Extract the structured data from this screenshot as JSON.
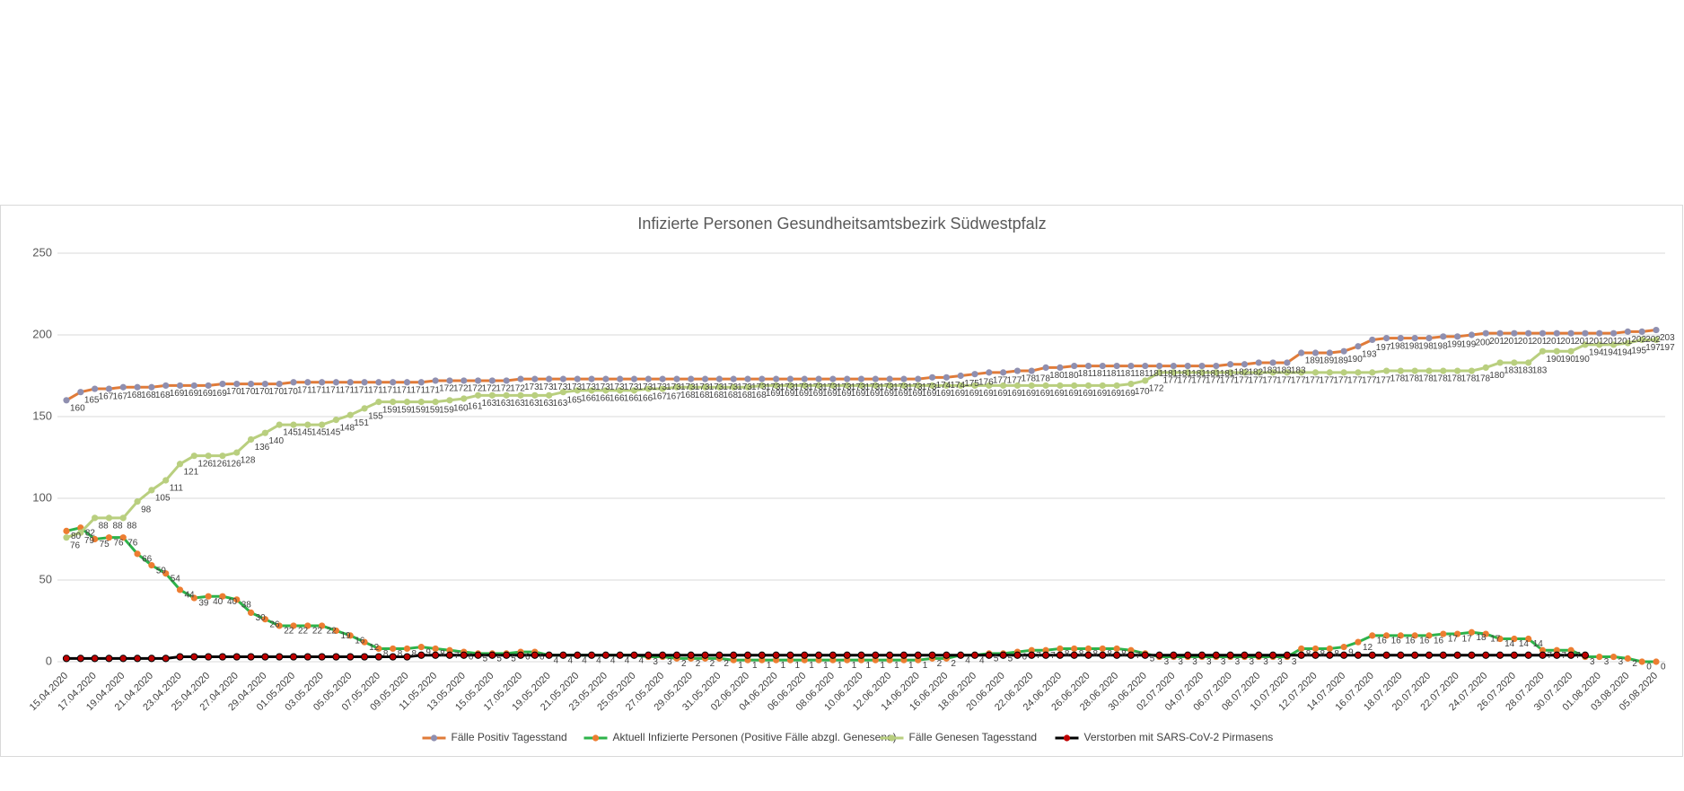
{
  "chart_data": {
    "type": "line",
    "title": "Infizierte Personen Gesundheitsamtsbezirk Südwestpfalz",
    "categories": [
      "15.04.2020",
      null,
      "17.04.2020",
      null,
      "19.04.2020",
      null,
      "21.04.2020",
      null,
      "23.04.2020",
      null,
      "25.04.2020",
      null,
      "27.04.2020",
      null,
      "29.04.2020",
      null,
      "01.05.2020",
      null,
      "03.05.2020",
      null,
      "05.05.2020",
      null,
      "07.05.2020",
      null,
      "09.05.2020",
      null,
      "11.05.2020",
      null,
      "13.05.2020",
      null,
      "15.05.2020",
      null,
      "17.05.2020",
      null,
      "19.05.2020",
      null,
      "21.05.2020",
      null,
      "23.05.2020",
      null,
      "25.05.2020",
      null,
      "27.05.2020",
      null,
      "29.05.2020",
      null,
      "31.05.2020",
      null,
      "02.06.2020",
      null,
      "04.06.2020",
      null,
      "06.06.2020",
      null,
      "08.06.2020",
      null,
      "10.06.2020",
      null,
      "12.06.2020",
      null,
      "14.06.2020",
      null,
      "16.06.2020",
      null,
      "18.06.2020",
      null,
      "20.06.2020",
      null,
      "22.06.2020",
      null,
      "24.06.2020",
      null,
      "26.06.2020",
      null,
      "28.06.2020",
      null,
      "30.06.2020",
      null,
      "02.07.2020",
      null,
      "04.07.2020",
      null,
      "06.07.2020",
      null,
      "08.07.2020",
      null,
      "10.07.2020",
      null,
      "12.07.2020",
      null,
      "14.07.2020",
      null,
      "16.07.2020",
      null,
      "18.07.2020",
      null,
      "20.07.2020",
      null,
      "22.07.2020",
      null,
      "24.07.2020",
      null,
      "26.07.2020",
      null,
      "28.07.2020",
      null,
      "30.07.2020",
      null,
      "01.08.2020",
      null,
      "03.08.2020",
      null,
      "05.08.2020"
    ],
    "series": [
      {
        "name": "Fälle Positiv Tagesstand",
        "color": "#e07b39",
        "marker": "#8f8fb0",
        "values": [
          160,
          165,
          167,
          167,
          168,
          168,
          168,
          169,
          169,
          169,
          169,
          170,
          170,
          170,
          170,
          170,
          171,
          171,
          171,
          171,
          171,
          171,
          171,
          171,
          171,
          171,
          172,
          172,
          172,
          172,
          172,
          172,
          173,
          173,
          173,
          173,
          173,
          173,
          173,
          173,
          173,
          173,
          173,
          173,
          173,
          173,
          173,
          173,
          173,
          173,
          173,
          173,
          173,
          173,
          173,
          173,
          173,
          173,
          173,
          173,
          173,
          174,
          174,
          175,
          176,
          177,
          177,
          178,
          178,
          180,
          180,
          181,
          181,
          181,
          181,
          181,
          181,
          181,
          181,
          181,
          181,
          181,
          182,
          182,
          183,
          183,
          183,
          189,
          189,
          189,
          190,
          193,
          197,
          198,
          198,
          198,
          198,
          199,
          199,
          200,
          201,
          201,
          201,
          201,
          201,
          201,
          201,
          201,
          201,
          201,
          202,
          202,
          203
        ]
      },
      {
        "name": "Aktuell Infizierte Personen (Positive Fälle abzgl. Genesene)",
        "color": "#2db34a",
        "marker": "#ed7d31",
        "values": [
          80,
          82,
          75,
          76,
          76,
          66,
          59,
          54,
          44,
          39,
          40,
          40,
          38,
          30,
          26,
          22,
          22,
          22,
          22,
          19,
          16,
          12,
          8,
          8,
          8,
          9,
          8,
          7,
          6,
          5,
          5,
          5,
          6,
          6,
          4,
          4,
          4,
          4,
          4,
          4,
          4,
          3,
          3,
          2,
          2,
          2,
          2,
          1,
          1,
          1,
          1,
          1,
          1,
          1,
          1,
          1,
          1,
          1,
          1,
          1,
          1,
          2,
          2,
          4,
          4,
          5,
          5,
          6,
          7,
          7,
          8,
          8,
          8,
          8,
          8,
          7,
          5,
          3,
          3,
          3,
          3,
          3,
          3,
          3,
          3,
          3,
          3,
          8,
          8,
          8,
          9,
          12,
          16,
          16,
          16,
          16,
          16,
          17,
          17,
          18,
          17,
          14,
          14,
          14,
          7,
          7,
          7,
          3,
          3,
          3,
          2,
          0,
          0
        ]
      },
      {
        "name": "Fälle Genesen Tagesstand",
        "color": "#b9cf7f",
        "marker": "#b9cf7f",
        "values": [
          76,
          79,
          88,
          88,
          88,
          98,
          105,
          111,
          121,
          126,
          126,
          126,
          128,
          136,
          140,
          145,
          145,
          145,
          145,
          148,
          151,
          155,
          159,
          159,
          159,
          159,
          159,
          160,
          161,
          163,
          163,
          163,
          163,
          163,
          163,
          165,
          166,
          166,
          166,
          166,
          166,
          167,
          167,
          168,
          168,
          168,
          168,
          168,
          168,
          169,
          169,
          169,
          169,
          169,
          169,
          169,
          169,
          169,
          169,
          169,
          169,
          169,
          169,
          169,
          169,
          169,
          169,
          169,
          169,
          169,
          169,
          169,
          169,
          169,
          169,
          170,
          172,
          177,
          177,
          177,
          177,
          177,
          177,
          177,
          177,
          177,
          177,
          177,
          177,
          177,
          177,
          177,
          177,
          178,
          178,
          178,
          178,
          178,
          178,
          178,
          180,
          183,
          183,
          183,
          190,
          190,
          190,
          194,
          194,
          194,
          195,
          197,
          197
        ]
      },
      {
        "name": "Verstorben mit SARS-CoV-2 Pirmasens",
        "color": "#000000",
        "marker": "#c00000",
        "values": [
          2,
          2,
          2,
          2,
          2,
          2,
          2,
          2,
          3,
          3,
          3,
          3,
          3,
          3,
          3,
          3,
          3,
          3,
          3,
          3,
          3,
          3,
          3,
          3,
          3,
          4,
          4,
          4,
          4,
          4,
          4,
          4,
          4,
          4,
          4,
          4,
          4,
          4,
          4,
          4,
          4,
          4,
          4,
          4,
          4,
          4,
          4,
          4,
          4,
          4,
          4,
          4,
          4,
          4,
          4,
          4,
          4,
          4,
          4,
          4,
          4,
          4,
          4,
          4,
          4,
          4,
          4,
          4,
          4,
          4,
          4,
          4,
          4,
          4,
          4,
          4,
          4,
          4,
          4,
          4,
          4,
          4,
          4,
          4,
          4,
          4,
          4,
          4,
          4,
          4,
          4,
          4,
          4,
          4,
          4,
          4,
          4,
          4,
          4,
          4,
          4,
          4,
          4,
          4,
          4,
          4,
          4,
          4,
          null,
          null,
          null,
          null,
          null
        ]
      }
    ],
    "ylim": [
      0,
      250
    ],
    "yticks": [
      0,
      50,
      100,
      150,
      200,
      250
    ],
    "grid": true,
    "legend": "bottom"
  }
}
